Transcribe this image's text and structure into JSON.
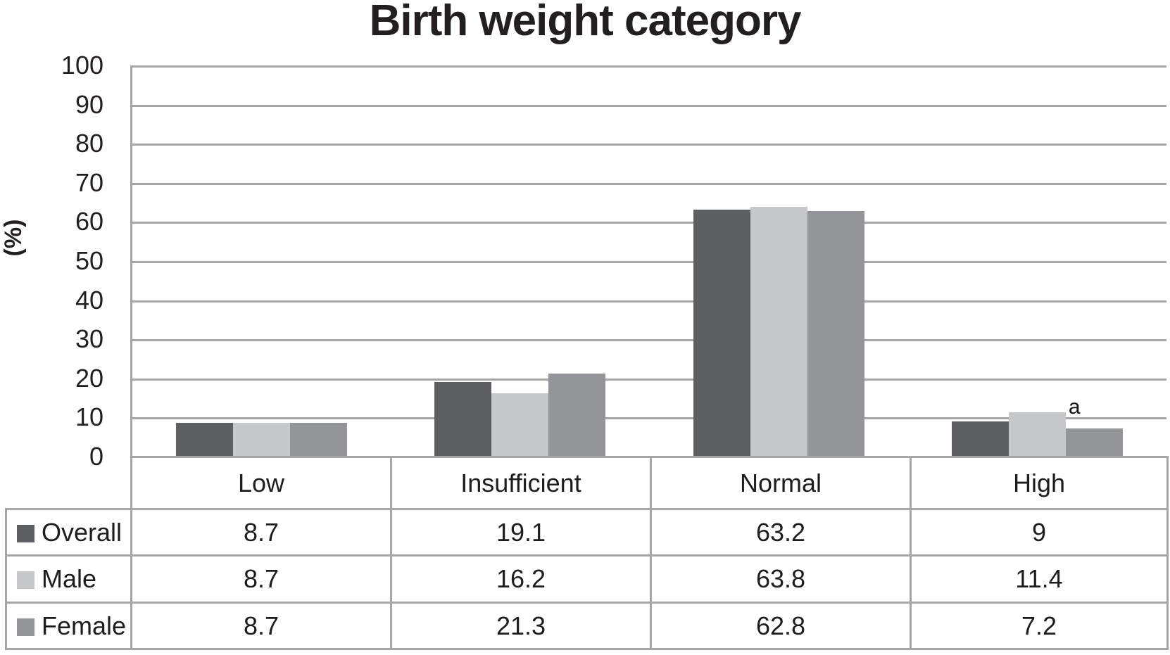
{
  "chart_data": {
    "type": "bar",
    "title": "Birth weight category",
    "ylabel": "(%)",
    "xlabel": "",
    "ylim": [
      0,
      100
    ],
    "yticks": [
      100,
      90,
      80,
      70,
      60,
      50,
      40,
      30,
      20,
      10,
      0
    ],
    "grid": true,
    "grid_color": "#a6a6a6",
    "legend_position": "table-left",
    "categories": [
      "Low",
      "Insufficient",
      "Normal",
      "High"
    ],
    "series": [
      {
        "name": "Overall",
        "color": "#5d5f62",
        "values": [
          8.7,
          19.1,
          63.2,
          9
        ]
      },
      {
        "name": "Male",
        "color": "#c7c8ca",
        "values": [
          8.7,
          16.2,
          63.8,
          11.4
        ]
      },
      {
        "name": "Female",
        "color": "#939598",
        "values": [
          8.7,
          21.3,
          62.8,
          7.2
        ]
      }
    ],
    "annotations": [
      {
        "text": "a",
        "series": "Male",
        "category": "High"
      }
    ]
  }
}
